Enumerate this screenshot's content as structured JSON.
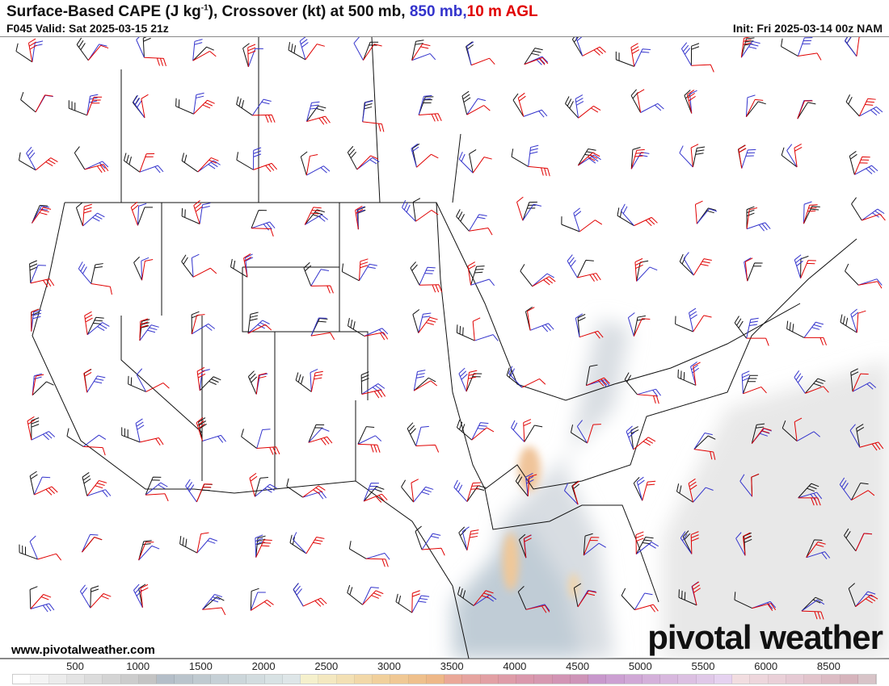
{
  "header": {
    "title_main": "Surface-Based CAPE (J kg",
    "title_sup": "-1",
    "title_rest": "), Crossover (kt) at 500 mb, ",
    "title_blue": "850 mb,",
    "title_red": "10 m AGL",
    "valid": "F045 Valid: Sat 2025-03-15 21z",
    "init": "Init: Fri 2025-03-14 00z NAM"
  },
  "colors": {
    "level_500mb": "#111111",
    "level_850mb": "#3333cc",
    "level_10m": "#e00000"
  },
  "footer": {
    "website": "www.pivotalweather.com",
    "brand": "pivotal weather"
  },
  "colorbar": {
    "tick_labels": [
      "500",
      "1000",
      "1500",
      "2000",
      "2500",
      "3000",
      "3500",
      "4000",
      "4500",
      "5000",
      "5500",
      "6000",
      "8500"
    ],
    "colors": [
      "#ffffff",
      "#f4f4f4",
      "#ececec",
      "#e4e4e4",
      "#dcdcdc",
      "#d4d4d4",
      "#cccccc",
      "#c4c4c4",
      "#b4bec8",
      "#bac4cc",
      "#c0cad0",
      "#c6d0d6",
      "#ccd6da",
      "#d2dcdf",
      "#d8e2e4",
      "#dee6e8",
      "#f5f0cc",
      "#f4e8c0",
      "#f3e0b4",
      "#f2d8a8",
      "#f1d09c",
      "#f0c894",
      "#efc08c",
      "#eeb888",
      "#eaa898",
      "#e6a4a0",
      "#e2a0a4",
      "#de9ca8",
      "#da98ac",
      "#d698b0",
      "#d294b4",
      "#ce94b8",
      "#c898cc",
      "#cca0d2",
      "#d0a8d6",
      "#d4b0da",
      "#d8b8de",
      "#dcc0e2",
      "#e0c8e8",
      "#e6d2f0",
      "#f2dde0",
      "#eed6dc",
      "#ead0d8",
      "#e6cad4",
      "#e2c4cc",
      "#dcbcc4",
      "#d6b4bc",
      "#d8c4c8"
    ]
  }
}
